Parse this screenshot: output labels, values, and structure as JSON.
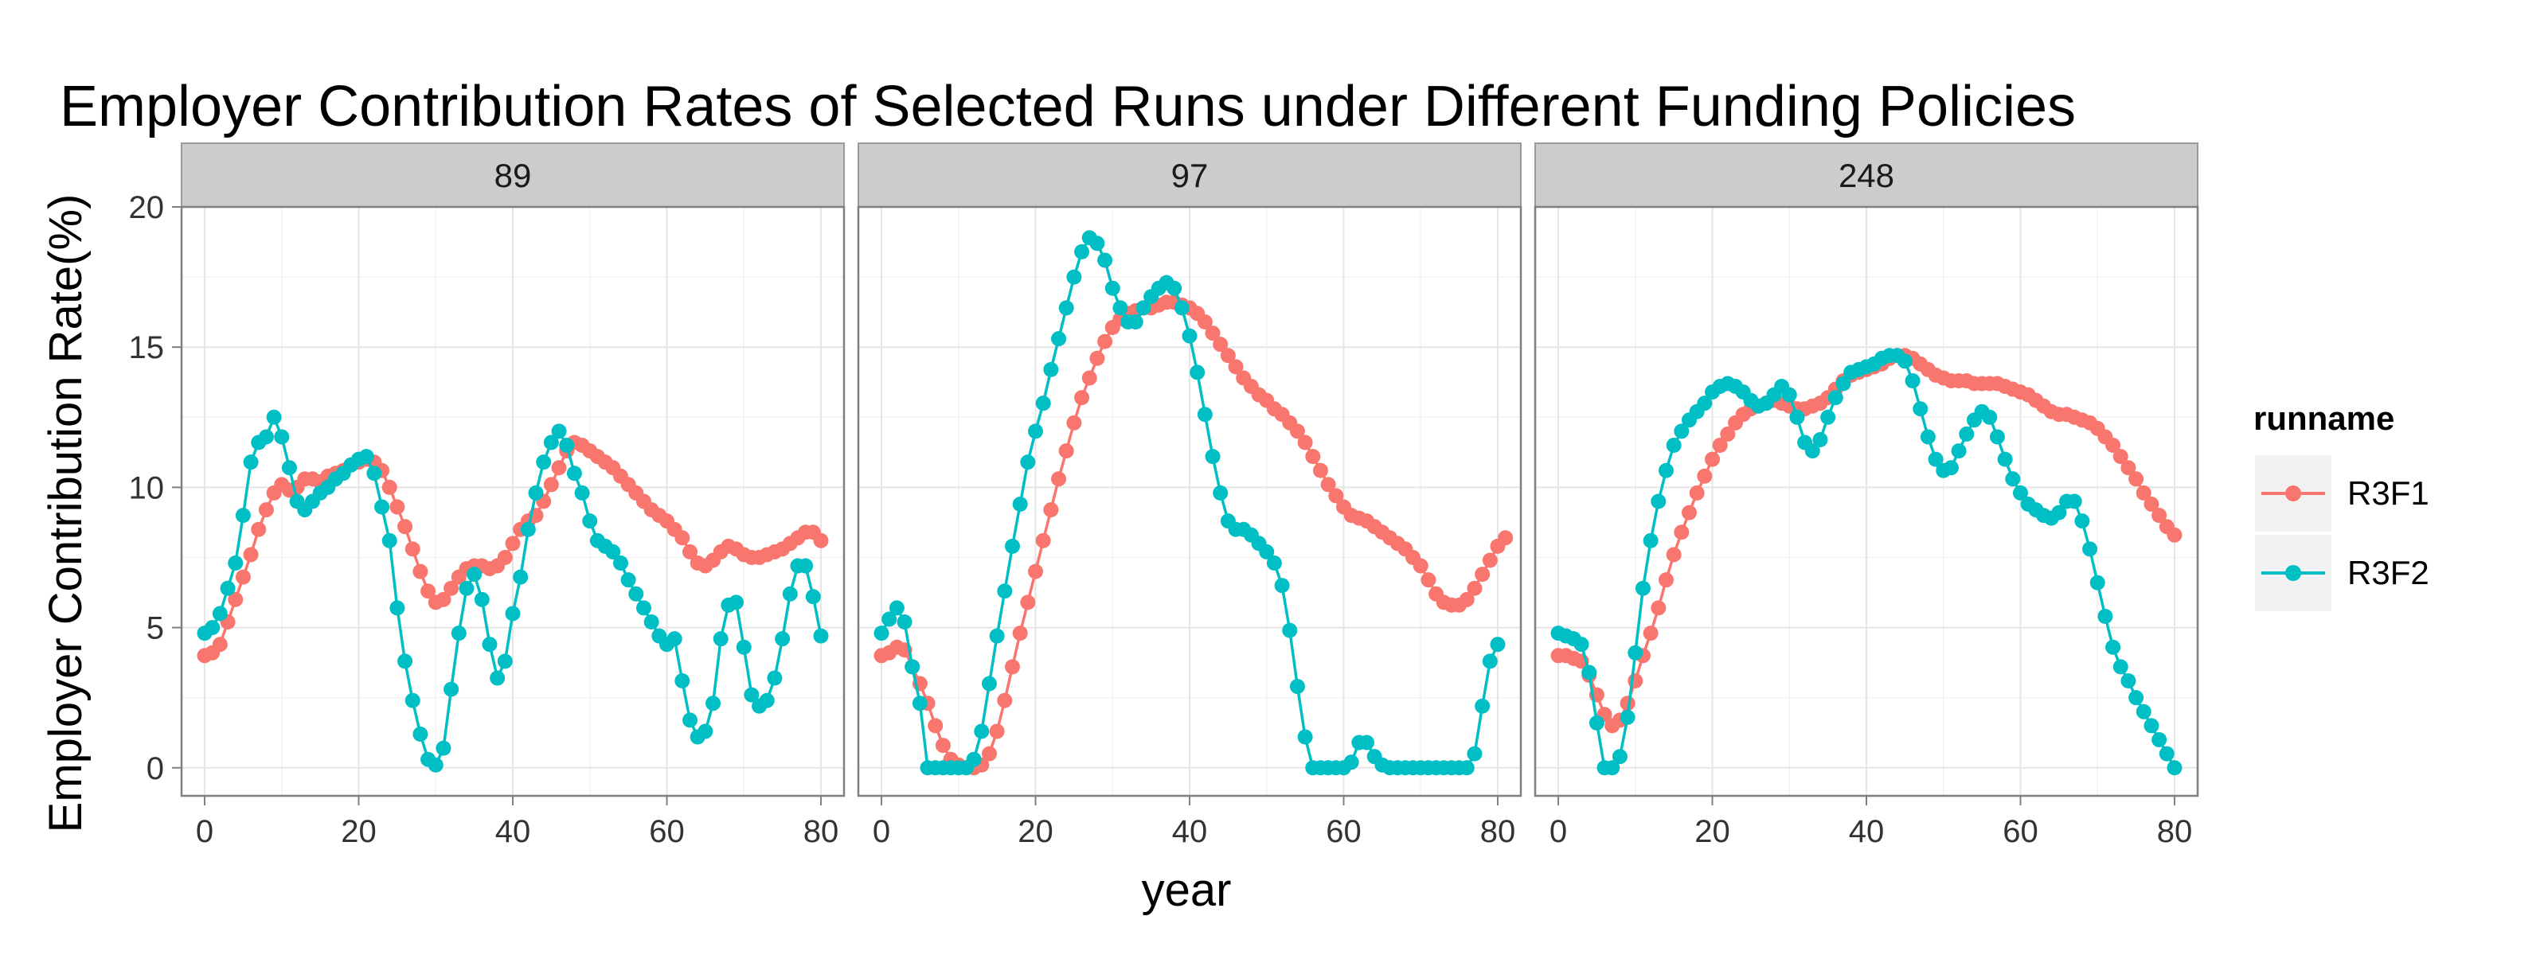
{
  "chart_data": {
    "type": "line",
    "title": "Employer Contribution Rates of Selected Runs under Different Funding Policies",
    "xlabel": "year",
    "ylabel": "Employer Contribution Rate(%)",
    "xlim": [
      -3,
      83
    ],
    "ylim": [
      -1,
      20
    ],
    "xticks": [
      0,
      20,
      40,
      60,
      80
    ],
    "yticks": [
      0,
      5,
      10,
      15,
      20
    ],
    "grid": true,
    "legend": {
      "title": "runname",
      "position": "right"
    },
    "series_colors": {
      "R3F1": "#F8766D",
      "R3F2": "#00BFC4"
    },
    "panels": [
      {
        "label": "89",
        "series": [
          {
            "name": "R3F1",
            "values": [
              4.0,
              4.1,
              4.4,
              5.2,
              6.0,
              6.8,
              7.6,
              8.5,
              9.2,
              9.8,
              10.1,
              9.9,
              10.0,
              10.3,
              10.3,
              10.2,
              10.4,
              10.5,
              10.6,
              10.8,
              10.9,
              11.0,
              10.9,
              10.6,
              10.0,
              9.3,
              8.6,
              7.8,
              7.0,
              6.3,
              5.9,
              6.0,
              6.4,
              6.8,
              7.1,
              7.2,
              7.2,
              7.1,
              7.2,
              7.5,
              8.0,
              8.5,
              8.8,
              9.0,
              9.5,
              10.1,
              10.7,
              11.3,
              11.6,
              11.5,
              11.3,
              11.1,
              10.9,
              10.7,
              10.4,
              10.1,
              9.8,
              9.5,
              9.2,
              9.0,
              8.8,
              8.5,
              8.2,
              7.7,
              7.3,
              7.2,
              7.4,
              7.7,
              7.9,
              7.8,
              7.6,
              7.5,
              7.5,
              7.6,
              7.7,
              7.8,
              8.0,
              8.2,
              8.4,
              8.4,
              8.1
            ]
          },
          {
            "name": "R3F2",
            "values": [
              4.8,
              5.0,
              5.5,
              6.4,
              7.3,
              9.0,
              10.9,
              11.6,
              11.8,
              12.5,
              11.8,
              10.7,
              9.5,
              9.2,
              9.5,
              9.8,
              10.0,
              10.3,
              10.5,
              10.8,
              11.0,
              11.1,
              10.5,
              9.3,
              8.1,
              5.7,
              3.8,
              2.4,
              1.2,
              0.3,
              0.1,
              0.7,
              2.8,
              4.8,
              6.4,
              6.9,
              6.0,
              4.4,
              3.2,
              3.8,
              5.5,
              6.8,
              8.5,
              9.8,
              10.9,
              11.6,
              12.0,
              11.5,
              10.5,
              9.8,
              8.8,
              8.1,
              7.9,
              7.7,
              7.3,
              6.7,
              6.2,
              5.7,
              5.2,
              4.7,
              4.4,
              4.6,
              3.1,
              1.7,
              1.1,
              1.3,
              2.3,
              4.6,
              5.8,
              5.9,
              4.3,
              2.6,
              2.2,
              2.4,
              3.2,
              4.6,
              6.2,
              7.2,
              7.2,
              6.1,
              4.7
            ]
          }
        ]
      },
      {
        "label": "97",
        "series": [
          {
            "name": "R3F1",
            "values": [
              4.0,
              4.1,
              4.3,
              4.2,
              3.6,
              3.0,
              2.3,
              1.5,
              0.8,
              0.3,
              0.1,
              0.0,
              0.0,
              0.1,
              0.5,
              1.3,
              2.4,
              3.6,
              4.8,
              5.9,
              7.0,
              8.1,
              9.2,
              10.3,
              11.3,
              12.3,
              13.2,
              13.9,
              14.6,
              15.2,
              15.7,
              16.0,
              16.2,
              16.3,
              16.4,
              16.4,
              16.5,
              16.6,
              16.6,
              16.5,
              16.4,
              16.2,
              15.9,
              15.5,
              15.1,
              14.7,
              14.3,
              13.9,
              13.6,
              13.3,
              13.1,
              12.8,
              12.6,
              12.3,
              12.0,
              11.6,
              11.1,
              10.6,
              10.1,
              9.7,
              9.3,
              9.0,
              8.9,
              8.8,
              8.6,
              8.4,
              8.2,
              8.0,
              7.8,
              7.5,
              7.2,
              6.7,
              6.2,
              5.9,
              5.8,
              5.8,
              6.0,
              6.4,
              6.9,
              7.4,
              7.9,
              8.2
            ]
          },
          {
            "name": "R3F2",
            "values": [
              4.8,
              5.3,
              5.7,
              5.2,
              3.6,
              2.3,
              0.0,
              0.0,
              0.0,
              0.0,
              0.0,
              0.0,
              0.3,
              1.3,
              3.0,
              4.7,
              6.3,
              7.9,
              9.4,
              10.9,
              12.0,
              13.0,
              14.2,
              15.3,
              16.4,
              17.5,
              18.4,
              18.9,
              18.7,
              18.1,
              17.1,
              16.4,
              15.9,
              15.9,
              16.4,
              16.8,
              17.1,
              17.3,
              17.1,
              16.4,
              15.4,
              14.1,
              12.6,
              11.1,
              9.8,
              8.8,
              8.5,
              8.5,
              8.3,
              8.0,
              7.7,
              7.3,
              6.5,
              4.9,
              2.9,
              1.1,
              0.0,
              0.0,
              0.0,
              0.0,
              0.0,
              0.2,
              0.9,
              0.9,
              0.4,
              0.1,
              0.0,
              0.0,
              0.0,
              0.0,
              0.0,
              0.0,
              0.0,
              0.0,
              0.0,
              0.0,
              0.0,
              0.5,
              2.2,
              3.8,
              4.4
            ]
          }
        ]
      },
      {
        "label": "248",
        "series": [
          {
            "name": "R3F1",
            "values": [
              4.0,
              4.0,
              3.9,
              3.8,
              3.3,
              2.6,
              1.9,
              1.5,
              1.7,
              2.3,
              3.1,
              4.0,
              4.8,
              5.7,
              6.7,
              7.6,
              8.4,
              9.1,
              9.8,
              10.4,
              11.0,
              11.5,
              11.9,
              12.3,
              12.6,
              12.8,
              12.9,
              13.0,
              13.1,
              13.0,
              12.9,
              12.8,
              12.8,
              12.9,
              13.0,
              13.2,
              13.5,
              13.8,
              14.0,
              14.1,
              14.2,
              14.3,
              14.4,
              14.6,
              14.7,
              14.7,
              14.6,
              14.4,
              14.2,
              14.0,
              13.9,
              13.8,
              13.8,
              13.8,
              13.7,
              13.7,
              13.7,
              13.7,
              13.6,
              13.5,
              13.4,
              13.3,
              13.1,
              12.9,
              12.7,
              12.6,
              12.6,
              12.5,
              12.4,
              12.3,
              12.1,
              11.8,
              11.5,
              11.1,
              10.7,
              10.3,
              9.8,
              9.4,
              9.0,
              8.6,
              8.3
            ]
          },
          {
            "name": "R3F2",
            "values": [
              4.8,
              4.7,
              4.6,
              4.4,
              3.4,
              1.6,
              0.0,
              0.0,
              0.4,
              1.8,
              4.1,
              6.4,
              8.1,
              9.5,
              10.6,
              11.5,
              12.0,
              12.4,
              12.7,
              13.0,
              13.4,
              13.6,
              13.7,
              13.6,
              13.4,
              13.1,
              12.9,
              13.0,
              13.3,
              13.6,
              13.3,
              12.5,
              11.6,
              11.3,
              11.7,
              12.5,
              13.2,
              13.7,
              14.1,
              14.2,
              14.3,
              14.4,
              14.6,
              14.7,
              14.7,
              14.5,
              13.8,
              12.8,
              11.8,
              11.0,
              10.6,
              10.7,
              11.3,
              11.9,
              12.4,
              12.7,
              12.5,
              11.8,
              11.0,
              10.3,
              9.8,
              9.4,
              9.2,
              9.0,
              8.9,
              9.1,
              9.5,
              9.5,
              8.8,
              7.8,
              6.6,
              5.4,
              4.3,
              3.6,
              3.1,
              2.5,
              2.0,
              1.5,
              1.0,
              0.5,
              0.0
            ]
          }
        ]
      }
    ]
  }
}
